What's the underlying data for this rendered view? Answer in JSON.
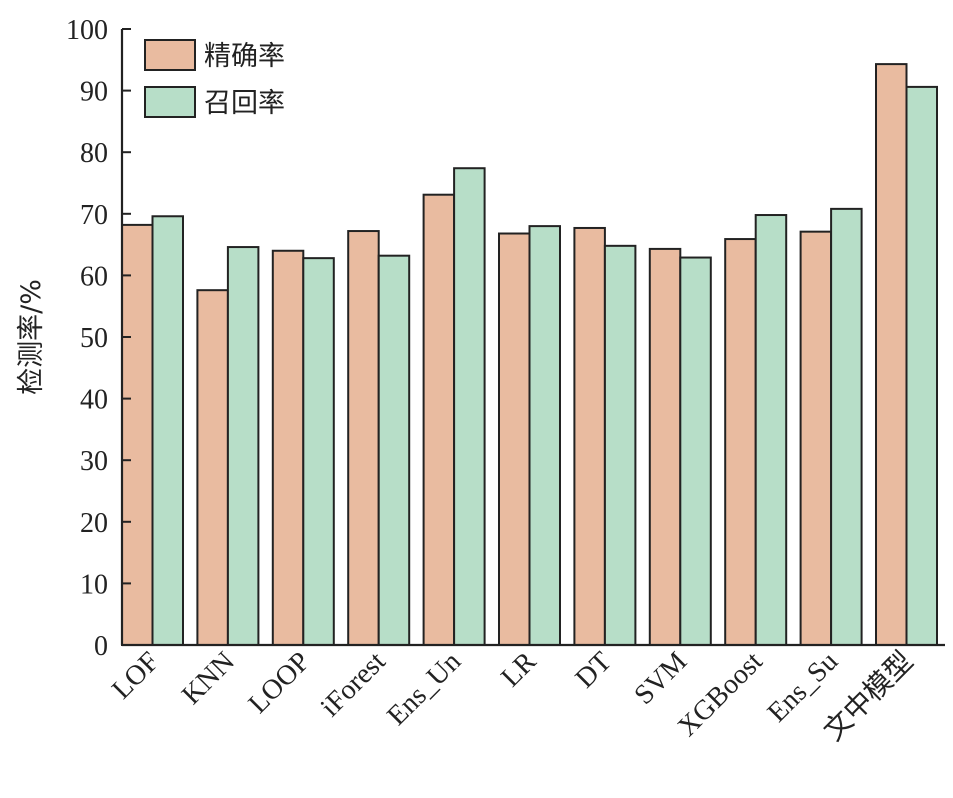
{
  "chart_data": {
    "type": "bar",
    "title": "",
    "xlabel": "",
    "ylabel": "检测率/%",
    "ylim": [
      0,
      100
    ],
    "yticks": [
      0,
      10,
      20,
      30,
      40,
      50,
      60,
      70,
      80,
      90,
      100
    ],
    "grid": false,
    "legend_position": "top-left",
    "categories": [
      "LOF",
      "KNN",
      "LOOP",
      "iForest",
      "Ens_Un",
      "LR",
      "DT",
      "SVM",
      "XGBoost",
      "Ens_Su",
      "文中模型"
    ],
    "series": [
      {
        "name": "精确率",
        "color": "#E9BBA0",
        "values": [
          68.2,
          57.6,
          64.0,
          67.2,
          73.1,
          66.8,
          67.7,
          64.3,
          65.9,
          67.1,
          94.3
        ]
      },
      {
        "name": "召回率",
        "color": "#B7DEC8",
        "values": [
          69.6,
          64.6,
          62.8,
          63.2,
          77.4,
          68.0,
          64.8,
          62.9,
          69.8,
          70.8,
          90.6
        ]
      }
    ]
  }
}
